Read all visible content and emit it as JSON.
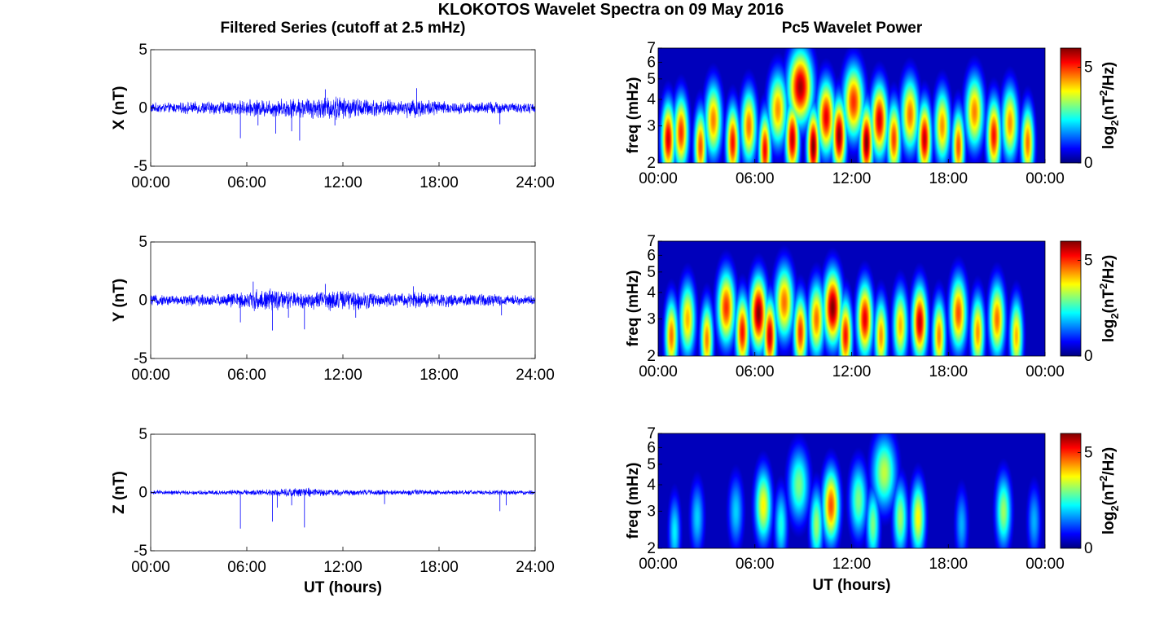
{
  "figure": {
    "title": "KLOKOTOS Wavelet Spectra on 09 May 2016",
    "left_column_title": "Filtered Series (cutoff at 2.5 mHz)",
    "right_column_title": "Pc5 Wavelet Power"
  },
  "colors": {
    "series_line": "#0000ff",
    "colormap": "jet",
    "axes": "#000000"
  },
  "chart_data": [
    {
      "type": "line",
      "component": "X",
      "ylabel": "X (nT)",
      "xlabel": "",
      "xlim": [
        0,
        24
      ],
      "ylim": [
        -5,
        5
      ],
      "yticks": [
        5,
        0,
        -5
      ],
      "xtick_labels": [
        "00:00",
        "06:00",
        "12:00",
        "18:00",
        "24:00"
      ],
      "noise_amplitude_nT": [
        0.35,
        0.35,
        0.4,
        0.45,
        0.45,
        0.5,
        0.55,
        0.6,
        0.65,
        0.7,
        0.75,
        0.8,
        0.7,
        0.6,
        0.55,
        0.5,
        0.65,
        0.55,
        0.45,
        0.4,
        0.4,
        0.45,
        0.35,
        0.35
      ],
      "spikes": [
        {
          "t": 5.6,
          "v": -2.6
        },
        {
          "t": 6.7,
          "v": -1.5
        },
        {
          "t": 7.8,
          "v": -2.2
        },
        {
          "t": 8.8,
          "v": -2.0
        },
        {
          "t": 9.3,
          "v": -2.8
        },
        {
          "t": 10.9,
          "v": 1.6
        },
        {
          "t": 11.5,
          "v": -1.5
        },
        {
          "t": 16.6,
          "v": 1.7
        },
        {
          "t": 21.8,
          "v": -1.4
        }
      ]
    },
    {
      "type": "heatmap",
      "component": "X",
      "ylabel": "freq (mHz)",
      "xlabel": "",
      "xlim": [
        0,
        24
      ],
      "ylim": [
        2,
        7
      ],
      "yticks": [
        7,
        6,
        5,
        4,
        3,
        2
      ],
      "xtick_labels": [
        "00:00",
        "06:00",
        "12:00",
        "18:00",
        "00:00"
      ],
      "colorbar": {
        "label_base": "log",
        "label_sub": "2",
        "label_unit": "(nT",
        "label_sup": "2",
        "label_tail": "/Hz)",
        "min": 0,
        "max": 6,
        "ticks": [
          5,
          0
        ]
      },
      "blobs": [
        {
          "t": 0.6,
          "f": 2.6,
          "p": 5.5
        },
        {
          "t": 1.4,
          "f": 2.8,
          "p": 5.0
        },
        {
          "t": 2.6,
          "f": 2.4,
          "p": 4.8
        },
        {
          "t": 3.4,
          "f": 3.2,
          "p": 4.5
        },
        {
          "t": 4.6,
          "f": 2.5,
          "p": 5.2
        },
        {
          "t": 5.6,
          "f": 3.0,
          "p": 4.6
        },
        {
          "t": 6.6,
          "f": 2.3,
          "p": 5.3
        },
        {
          "t": 7.4,
          "f": 3.6,
          "p": 4.4
        },
        {
          "t": 8.3,
          "f": 2.6,
          "p": 5.6
        },
        {
          "t": 8.8,
          "f": 4.6,
          "p": 5.8
        },
        {
          "t": 9.6,
          "f": 2.4,
          "p": 6.0
        },
        {
          "t": 10.4,
          "f": 3.3,
          "p": 5.4
        },
        {
          "t": 11.2,
          "f": 2.7,
          "p": 5.9
        },
        {
          "t": 12.1,
          "f": 3.9,
          "p": 5.0
        },
        {
          "t": 12.9,
          "f": 2.5,
          "p": 6.0
        },
        {
          "t": 13.7,
          "f": 3.2,
          "p": 5.5
        },
        {
          "t": 14.6,
          "f": 2.6,
          "p": 4.9
        },
        {
          "t": 15.6,
          "f": 3.4,
          "p": 4.6
        },
        {
          "t": 16.5,
          "f": 2.6,
          "p": 5.6
        },
        {
          "t": 17.6,
          "f": 3.0,
          "p": 4.4
        },
        {
          "t": 18.6,
          "f": 2.4,
          "p": 4.8
        },
        {
          "t": 19.6,
          "f": 3.5,
          "p": 4.5
        },
        {
          "t": 20.8,
          "f": 2.7,
          "p": 5.2
        },
        {
          "t": 21.8,
          "f": 3.1,
          "p": 4.4
        },
        {
          "t": 22.9,
          "f": 2.5,
          "p": 4.6
        }
      ]
    },
    {
      "type": "line",
      "component": "Y",
      "ylabel": "Y (nT)",
      "xlabel": "",
      "xlim": [
        0,
        24
      ],
      "ylim": [
        -5,
        5
      ],
      "yticks": [
        5,
        0,
        -5
      ],
      "xtick_labels": [
        "00:00",
        "06:00",
        "12:00",
        "18:00",
        "24:00"
      ],
      "noise_amplitude_nT": [
        0.35,
        0.35,
        0.4,
        0.4,
        0.45,
        0.55,
        0.7,
        0.75,
        0.6,
        0.55,
        0.6,
        0.7,
        0.65,
        0.6,
        0.5,
        0.45,
        0.55,
        0.5,
        0.45,
        0.4,
        0.4,
        0.4,
        0.35,
        0.35
      ],
      "spikes": [
        {
          "t": 5.6,
          "v": -1.9
        },
        {
          "t": 6.4,
          "v": 1.6
        },
        {
          "t": 7.6,
          "v": -2.6
        },
        {
          "t": 8.6,
          "v": -1.5
        },
        {
          "t": 9.6,
          "v": -2.5
        },
        {
          "t": 10.9,
          "v": 1.4
        },
        {
          "t": 12.8,
          "v": -1.5
        },
        {
          "t": 16.4,
          "v": 1.2
        },
        {
          "t": 21.9,
          "v": -1.3
        }
      ]
    },
    {
      "type": "heatmap",
      "component": "Y",
      "ylabel": "freq (mHz)",
      "xlabel": "",
      "xlim": [
        0,
        24
      ],
      "ylim": [
        2,
        7
      ],
      "yticks": [
        7,
        6,
        5,
        4,
        3,
        2
      ],
      "xtick_labels": [
        "00:00",
        "06:00",
        "12:00",
        "18:00",
        "00:00"
      ],
      "colorbar": {
        "label_base": "log",
        "label_sub": "2",
        "label_unit": "(nT",
        "label_sup": "2",
        "label_tail": "/Hz)",
        "min": 0,
        "max": 6,
        "ticks": [
          5,
          0
        ]
      },
      "blobs": [
        {
          "t": 0.8,
          "f": 2.5,
          "p": 4.6
        },
        {
          "t": 1.8,
          "f": 3.0,
          "p": 4.2
        },
        {
          "t": 3.0,
          "f": 2.4,
          "p": 4.5
        },
        {
          "t": 4.2,
          "f": 3.4,
          "p": 5.0
        },
        {
          "t": 5.2,
          "f": 2.6,
          "p": 5.2
        },
        {
          "t": 6.2,
          "f": 3.2,
          "p": 6.0
        },
        {
          "t": 6.9,
          "f": 2.5,
          "p": 5.6
        },
        {
          "t": 7.8,
          "f": 3.6,
          "p": 4.6
        },
        {
          "t": 8.8,
          "f": 2.6,
          "p": 5.0
        },
        {
          "t": 9.8,
          "f": 3.0,
          "p": 4.6
        },
        {
          "t": 10.8,
          "f": 3.4,
          "p": 6.0
        },
        {
          "t": 11.6,
          "f": 2.5,
          "p": 5.2
        },
        {
          "t": 12.8,
          "f": 3.0,
          "p": 5.4
        },
        {
          "t": 13.8,
          "f": 2.5,
          "p": 4.4
        },
        {
          "t": 15.0,
          "f": 2.8,
          "p": 4.2
        },
        {
          "t": 16.2,
          "f": 2.9,
          "p": 5.6
        },
        {
          "t": 17.4,
          "f": 2.5,
          "p": 4.5
        },
        {
          "t": 18.6,
          "f": 3.2,
          "p": 4.8
        },
        {
          "t": 19.8,
          "f": 2.6,
          "p": 4.4
        },
        {
          "t": 21.0,
          "f": 3.0,
          "p": 4.6
        },
        {
          "t": 22.2,
          "f": 2.5,
          "p": 4.2
        }
      ]
    },
    {
      "type": "line",
      "component": "Z",
      "ylabel": "Z (nT)",
      "xlabel": "UT (hours)",
      "xlim": [
        0,
        24
      ],
      "ylim": [
        -5,
        5
      ],
      "yticks": [
        5,
        0,
        -5
      ],
      "xtick_labels": [
        "00:00",
        "06:00",
        "12:00",
        "18:00",
        "24:00"
      ],
      "noise_amplitude_nT": [
        0.15,
        0.15,
        0.15,
        0.15,
        0.15,
        0.18,
        0.2,
        0.22,
        0.28,
        0.3,
        0.25,
        0.22,
        0.2,
        0.18,
        0.18,
        0.16,
        0.2,
        0.18,
        0.15,
        0.15,
        0.15,
        0.16,
        0.15,
        0.15
      ],
      "spikes": [
        {
          "t": 5.6,
          "v": -3.1
        },
        {
          "t": 7.6,
          "v": -2.5
        },
        {
          "t": 7.9,
          "v": -1.3
        },
        {
          "t": 8.8,
          "v": -1.1
        },
        {
          "t": 9.6,
          "v": -3.0
        },
        {
          "t": 14.6,
          "v": -1.0
        },
        {
          "t": 21.8,
          "v": -1.6
        },
        {
          "t": 22.2,
          "v": -1.1
        }
      ]
    },
    {
      "type": "heatmap",
      "component": "Z",
      "ylabel": "freq (mHz)",
      "xlabel": "UT (hours)",
      "xlim": [
        0,
        24
      ],
      "ylim": [
        2,
        7
      ],
      "yticks": [
        7,
        6,
        5,
        4,
        3,
        2
      ],
      "xtick_labels": [
        "00:00",
        "06:00",
        "12:00",
        "18:00",
        "00:00"
      ],
      "colorbar": {
        "label_base": "log",
        "label_sub": "2",
        "label_unit": "(nT",
        "label_sup": "2",
        "label_tail": "/Hz)",
        "min": 0,
        "max": 6,
        "ticks": [
          5,
          0
        ]
      },
      "blobs": [
        {
          "t": 1.0,
          "f": 2.4,
          "p": 2.2
        },
        {
          "t": 2.4,
          "f": 2.8,
          "p": 2.0
        },
        {
          "t": 4.8,
          "f": 3.0,
          "p": 2.0
        },
        {
          "t": 6.5,
          "f": 3.2,
          "p": 3.8
        },
        {
          "t": 7.6,
          "f": 2.6,
          "p": 2.4
        },
        {
          "t": 8.7,
          "f": 4.0,
          "p": 3.0
        },
        {
          "t": 9.8,
          "f": 2.6,
          "p": 3.2
        },
        {
          "t": 10.7,
          "f": 3.2,
          "p": 4.8
        },
        {
          "t": 12.4,
          "f": 3.4,
          "p": 3.0
        },
        {
          "t": 13.3,
          "f": 2.6,
          "p": 3.0
        },
        {
          "t": 14.0,
          "f": 4.6,
          "p": 3.4
        },
        {
          "t": 15.0,
          "f": 2.8,
          "p": 3.2
        },
        {
          "t": 16.1,
          "f": 2.8,
          "p": 3.8
        },
        {
          "t": 18.8,
          "f": 2.6,
          "p": 1.8
        },
        {
          "t": 21.4,
          "f": 3.0,
          "p": 3.2
        },
        {
          "t": 23.3,
          "f": 2.7,
          "p": 1.8
        }
      ]
    }
  ]
}
